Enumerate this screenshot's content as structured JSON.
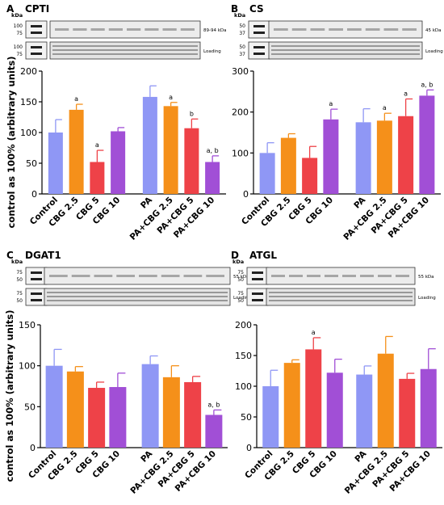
{
  "colors": {
    "control": "#8f97f5",
    "cbg25": "#f5901a",
    "cbg5": "#ee4248",
    "cbg10": "#a14fd6",
    "error_bar": "#000000"
  },
  "chart_data": [
    {
      "panel": "A",
      "title": "CPTI",
      "type": "bar",
      "ylabel": "control as 100% (arbitrary units)",
      "ylim": [
        0,
        200
      ],
      "yticks": [
        0,
        50,
        100,
        150,
        200
      ],
      "categories": [
        "Control",
        "CBG 2.5",
        "CBG 5",
        "CBG 10",
        "PA",
        "PA+CBG 2.5",
        "PA+CBG 5",
        "PA+CBG 10"
      ],
      "values": [
        100,
        137,
        52,
        102,
        158,
        143,
        107,
        52
      ],
      "errors": [
        21,
        9,
        19,
        6,
        18,
        6,
        15,
        10
      ],
      "annotations": [
        "",
        "a",
        "a",
        "",
        "",
        "a",
        "b",
        "a, b"
      ],
      "blot": {
        "kda_header": "kDa",
        "band_kda": [
          "100",
          "75"
        ],
        "band_label": "89-94 kDa",
        "loading_kda": [
          "100",
          "75"
        ],
        "loading_label": "Loading"
      }
    },
    {
      "panel": "B",
      "title": "CS",
      "type": "bar",
      "ylabel": "",
      "ylim": [
        0,
        300
      ],
      "yticks": [
        0,
        100,
        200,
        300
      ],
      "categories": [
        "Control",
        "CBG 2.5",
        "CBG 5",
        "CBG 10",
        "PA",
        "PA+CBG 2.5",
        "PA+CBG 5",
        "PA+CBG 10"
      ],
      "values": [
        100,
        137,
        88,
        182,
        175,
        179,
        190,
        240
      ],
      "errors": [
        25,
        10,
        28,
        25,
        33,
        18,
        42,
        14
      ],
      "annotations": [
        "",
        "",
        "",
        "a",
        "",
        "a",
        "a",
        "a, b"
      ],
      "blot": {
        "kda_header": "kDa",
        "band_kda": [
          "50",
          "37"
        ],
        "band_label": "45 kDa",
        "loading_kda": [
          "50",
          "37"
        ],
        "loading_label": "Loading"
      }
    },
    {
      "panel": "C",
      "title": "DGAT1",
      "type": "bar",
      "ylabel": "control as 100% (arbitrary units)",
      "ylim": [
        0,
        150
      ],
      "yticks": [
        0,
        50,
        100,
        150
      ],
      "categories": [
        "Control",
        "CBG 2.5",
        "CBG 5",
        "CBG 10",
        "PA",
        "PA+CBG 2.5",
        "PA+CBG 5",
        "PA+CBG 10"
      ],
      "values": [
        100,
        93,
        73,
        74,
        102,
        86,
        80,
        40
      ],
      "errors": [
        20,
        6,
        7,
        17,
        10,
        14,
        7,
        6
      ],
      "annotations": [
        "",
        "",
        "",
        "",
        "",
        "",
        "",
        "a, b"
      ],
      "blot": {
        "kda_header": "kDa",
        "band_kda": [
          "75",
          "50"
        ],
        "band_label": "55 kDa",
        "loading_kda": [
          "75",
          "50"
        ],
        "loading_label": "Loading"
      }
    },
    {
      "panel": "D",
      "title": "ATGL",
      "type": "bar",
      "ylabel": "",
      "ylim": [
        0,
        200
      ],
      "yticks": [
        0,
        50,
        100,
        150,
        200
      ],
      "categories": [
        "Control",
        "CBG 2.5",
        "CBG 5",
        "CBG 10",
        "PA",
        "PA+CBG 2.5",
        "PA+CBG 5",
        "PA+CBG 10"
      ],
      "values": [
        100,
        138,
        160,
        122,
        119,
        153,
        112,
        128
      ],
      "errors": [
        26,
        5,
        19,
        22,
        14,
        28,
        9,
        33
      ],
      "annotations": [
        "",
        "",
        "a",
        "",
        "",
        "",
        "",
        ""
      ],
      "blot": {
        "kda_header": "kDa",
        "band_kda": [
          "75",
          "50"
        ],
        "band_label": "55 kDa",
        "loading_kda": [
          "75",
          "50"
        ],
        "loading_label": "Loading"
      }
    }
  ]
}
